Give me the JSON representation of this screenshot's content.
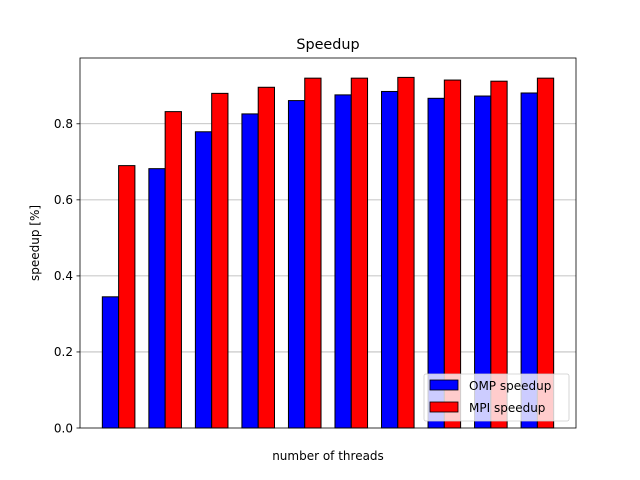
{
  "chart_data": {
    "type": "bar",
    "title": "Speedup",
    "xlabel": "number of threads",
    "ylabel": "speedup [%]",
    "categories": [
      "",
      "",
      "",
      "",
      "",
      "",
      "",
      "",
      "",
      ""
    ],
    "series": [
      {
        "name": "OMP speedup",
        "color": "#0000ff",
        "values": [
          0.345,
          0.682,
          0.779,
          0.826,
          0.861,
          0.876,
          0.885,
          0.867,
          0.873,
          0.881
        ]
      },
      {
        "name": "MPI speedup",
        "color": "#ff0000",
        "values": [
          0.69,
          0.832,
          0.88,
          0.896,
          0.92,
          0.92,
          0.922,
          0.915,
          0.912,
          0.92
        ]
      }
    ],
    "ylim": [
      0,
      0.973
    ],
    "yticks": [
      0.0,
      0.2,
      0.4,
      0.6,
      0.8
    ],
    "ytick_labels": [
      "0.0",
      "0.2",
      "0.4",
      "0.6",
      "0.8"
    ],
    "grid": "y",
    "legend_position": "lower-right",
    "bar_edge_color": "#000000"
  }
}
